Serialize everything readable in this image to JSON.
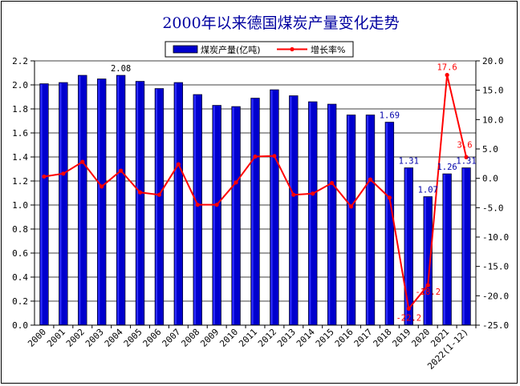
{
  "chart_data": {
    "type": "bar",
    "title": "2000年以来德国煤炭产量变化走势",
    "categories": [
      "2000",
      "2001",
      "2002",
      "2003",
      "2004",
      "2005",
      "2006",
      "2007",
      "2008",
      "2009",
      "2010",
      "2011",
      "2012",
      "2013",
      "2014",
      "2015",
      "2016",
      "2017",
      "2018",
      "2019",
      "2020",
      "2021",
      "2022(1-12)"
    ],
    "series": [
      {
        "name": "煤炭产量(亿吨)",
        "type": "bar",
        "axis": "left",
        "color": "#0000cd",
        "values": [
          2.01,
          2.02,
          2.08,
          2.05,
          2.08,
          2.03,
          1.97,
          2.02,
          1.92,
          1.83,
          1.82,
          1.89,
          1.96,
          1.91,
          1.86,
          1.84,
          1.75,
          1.75,
          1.69,
          1.31,
          1.07,
          1.26,
          1.31
        ]
      },
      {
        "name": "增长率%",
        "type": "line",
        "axis": "right",
        "color": "#ff0000",
        "values": [
          0.3,
          0.8,
          2.8,
          -1.4,
          1.3,
          -2.4,
          -2.8,
          2.4,
          -4.5,
          -4.5,
          -0.7,
          3.7,
          3.8,
          -2.8,
          -2.6,
          -0.8,
          -4.8,
          -0.2,
          -3.3,
          -22.2,
          -18.2,
          17.6,
          3.6
        ]
      }
    ],
    "bar_labels": [
      {
        "index": 4,
        "text": "2.08"
      },
      {
        "index": 18,
        "text": "1.69"
      },
      {
        "index": 19,
        "text": "1.31"
      },
      {
        "index": 20,
        "text": "1.07"
      },
      {
        "index": 21,
        "text": "1.26"
      },
      {
        "index": 22,
        "text": "1.31"
      }
    ],
    "line_labels": [
      {
        "index": 19,
        "text": "-22.2"
      },
      {
        "index": 20,
        "text": "-18.2"
      },
      {
        "index": 21,
        "text": "17.6"
      },
      {
        "index": 22,
        "text": "3.6"
      }
    ],
    "y_left": {
      "min": 0,
      "max": 2.2,
      "ticks": [
        "0.0",
        "0.2",
        "0.4",
        "0.6",
        "0.8",
        "1.0",
        "1.2",
        "1.4",
        "1.6",
        "1.8",
        "2.0",
        "2.2"
      ]
    },
    "y_right": {
      "min": -25,
      "max": 20,
      "ticks": [
        "-25.0",
        "-20.0",
        "-15.0",
        "-10.0",
        "-5.0",
        "0.0",
        "5.0",
        "10.0",
        "15.0",
        "20.0"
      ]
    },
    "grid": "horizontal",
    "legend_position": "top-center",
    "plot_background": "#ffffff"
  }
}
